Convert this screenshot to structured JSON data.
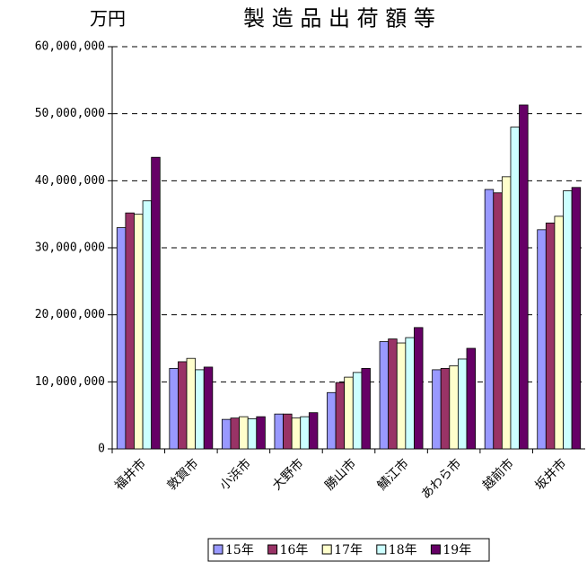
{
  "chart_data": {
    "type": "bar",
    "title": "製 造 品 出 荷 額 等",
    "y_axis_label": "万円",
    "categories": [
      "福井市",
      "敦賀市",
      "小浜市",
      "大野市",
      "勝山市",
      "鯖江市",
      "あわら市",
      "越前市",
      "坂井市"
    ],
    "series": [
      {
        "name": "15年",
        "color": "#9999ff",
        "values": [
          33000000,
          12000000,
          4400000,
          5200000,
          8400000,
          16000000,
          11800000,
          38700000,
          32700000
        ]
      },
      {
        "name": "16年",
        "color": "#993366",
        "values": [
          35200000,
          13000000,
          4600000,
          5200000,
          9900000,
          16400000,
          12000000,
          38200000,
          33700000
        ]
      },
      {
        "name": "17年",
        "color": "#ffffcc",
        "values": [
          35000000,
          13500000,
          4800000,
          4600000,
          10700000,
          15800000,
          12400000,
          40600000,
          34700000
        ]
      },
      {
        "name": "18年",
        "color": "#ccffff",
        "values": [
          37000000,
          11800000,
          4500000,
          4800000,
          11400000,
          16600000,
          13400000,
          48000000,
          38500000
        ]
      },
      {
        "name": "19年",
        "color": "#660066",
        "values": [
          43500000,
          12200000,
          4800000,
          5400000,
          12000000,
          18100000,
          15000000,
          51300000,
          39000000
        ]
      }
    ],
    "ylim": [
      0,
      60000000
    ],
    "yticks": [
      0,
      {
        "value": 10000000,
        "label": "10,000,000"
      },
      {
        "value": 20000000,
        "label": "20,000,000"
      },
      {
        "value": 30000000,
        "label": "30,000,000"
      },
      {
        "value": 40000000,
        "label": "40,000,000"
      },
      {
        "value": 50000000,
        "label": "50,000,000"
      },
      {
        "value": 60000000,
        "label": "60,000,000"
      }
    ],
    "grid": true,
    "legend": "bottom"
  }
}
